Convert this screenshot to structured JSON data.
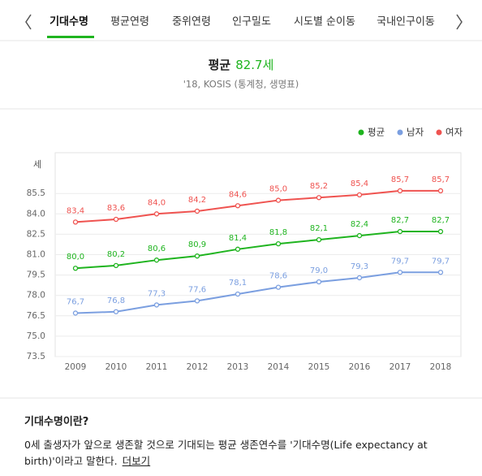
{
  "tabs": [
    "기대수명",
    "평균연령",
    "중위연령",
    "인구밀도",
    "시도별 순이동",
    "국내인구이동"
  ],
  "chart_data": {
    "type": "line",
    "title": "평균",
    "title_value": "82.7세",
    "subtitle": "'18, KOSIS (통계청, 생명표)",
    "y_label": "세",
    "categories": [
      "2009",
      "2010",
      "2011",
      "2012",
      "2013",
      "2014",
      "2015",
      "2016",
      "2017",
      "2018"
    ],
    "series": [
      {
        "name": "평균",
        "color": "#1fb41f",
        "values": [
          80.0,
          80.2,
          80.6,
          80.9,
          81.4,
          81.8,
          82.1,
          82.4,
          82.7,
          82.7
        ],
        "value_labels": [
          "80,0",
          "80,2",
          "80,6",
          "80,9",
          "81,4",
          "81,8",
          "82,1",
          "82,4",
          "82,7",
          "82,7"
        ]
      },
      {
        "name": "남자",
        "color": "#7b9fe0",
        "values": [
          76.7,
          76.8,
          77.3,
          77.6,
          78.1,
          78.6,
          79.0,
          79.3,
          79.7,
          79.7
        ],
        "value_labels": [
          "76,7",
          "76,8",
          "77,3",
          "77,6",
          "78,1",
          "78,6",
          "79,0",
          "79,3",
          "79,7",
          "79,7"
        ]
      },
      {
        "name": "여자",
        "color": "#ef5350",
        "values": [
          83.4,
          83.6,
          84.0,
          84.2,
          84.6,
          85.0,
          85.2,
          85.4,
          85.7,
          85.7
        ],
        "value_labels": [
          "83,4",
          "83,6",
          "84,0",
          "84,2",
          "84,6",
          "85,0",
          "85,2",
          "85,4",
          "85,7",
          "85,7"
        ]
      }
    ],
    "ylim": [
      73.5,
      88.5
    ],
    "yticks": [
      73.5,
      {
        "value": 75,
        "label": "75.0"
      },
      76.5,
      {
        "value": 78,
        "label": "78.0"
      },
      79.5,
      {
        "value": 81,
        "label": "81.0"
      },
      82.5,
      {
        "value": 84,
        "label": "84.0"
      },
      85.5
    ],
    "grid": true,
    "legend": "top-right"
  },
  "info": {
    "heading": "기대수명이란?",
    "text": "0세 출생자가 앞으로 생존할 것으로 기대되는 평균 생존연수를 '기대수명(Life expectancy at birth)'이라고 말한다.",
    "link": "더보기"
  }
}
